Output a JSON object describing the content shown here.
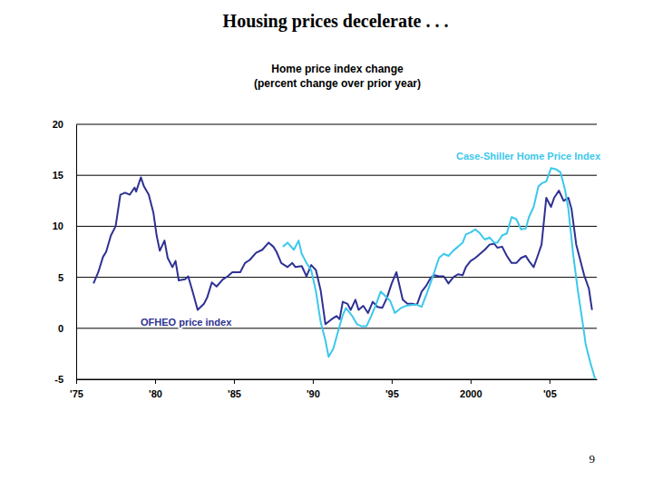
{
  "chart_data": {
    "type": "line",
    "title": "Housing prices decelerate . . .",
    "subtitle": [
      "Home price index change",
      "(percent change over prior year)"
    ],
    "annotations": [
      "9"
    ],
    "xlim": [
      1975,
      2008
    ],
    "xticks": [
      {
        "value": 1975,
        "label": "'75"
      },
      {
        "value": 1980,
        "label": "'80"
      },
      {
        "value": 1985,
        "label": "'85"
      },
      {
        "value": 1990,
        "label": "'90"
      },
      {
        "value": 1995,
        "label": "'95"
      },
      {
        "value": 2000,
        "label": "2000"
      },
      {
        "value": 2005,
        "label": "'05"
      }
    ],
    "ylim": [
      -5,
      20
    ],
    "yticks": [
      -5,
      0,
      5,
      10,
      15,
      20
    ],
    "grid": true,
    "series": [
      {
        "name": "OFHEO price index",
        "color": "#2e3192",
        "x": [
          1976.1,
          1976.4,
          1976.7,
          1976.9,
          1977.2,
          1977.5,
          1977.8,
          1978.1,
          1978.4,
          1978.7,
          1978.8,
          1979.1,
          1979.3,
          1979.6,
          1979.9,
          1980.1,
          1980.3,
          1980.6,
          1980.8,
          1981.1,
          1981.3,
          1981.5,
          1981.9,
          1982.1,
          1982.4,
          1982.7,
          1983.1,
          1983.3,
          1983.6,
          1983.9,
          1984.3,
          1984.6,
          1984.9,
          1985.4,
          1985.7,
          1986.0,
          1986.4,
          1986.8,
          1987.2,
          1987.5,
          1987.7,
          1988.0,
          1988.4,
          1988.7,
          1988.9,
          1989.3,
          1989.6,
          1989.9,
          1990.2,
          1990.5,
          1990.8,
          1991.2,
          1991.5,
          1991.7,
          1991.9,
          1992.2,
          1992.4,
          1992.7,
          1992.9,
          1993.2,
          1993.5,
          1993.8,
          1994.1,
          1994.4,
          1994.7,
          1995.0,
          1995.3,
          1995.7,
          1996.0,
          1996.3,
          1996.6,
          1996.9,
          1997.2,
          1997.5,
          1997.7,
          1998.0,
          1998.3,
          1998.6,
          1998.9,
          1999.2,
          1999.5,
          1999.7,
          2000.0,
          2000.3,
          2000.6,
          2000.9,
          2001.2,
          2001.5,
          2001.7,
          2002.0,
          2002.3,
          2002.6,
          2002.9,
          2003.2,
          2003.5,
          2003.7,
          2004.0,
          2004.3,
          2004.5,
          2004.8,
          2005.1,
          2005.3,
          2005.6,
          2005.9,
          2006.2,
          2006.4,
          2006.7,
          2007.0,
          2007.2,
          2007.5,
          2007.7
        ],
        "values": [
          4.4,
          5.5,
          7.0,
          7.5,
          9.1,
          10.0,
          13.1,
          13.3,
          13.1,
          13.8,
          13.4,
          14.8,
          13.9,
          13.1,
          11.3,
          9.1,
          7.6,
          8.6,
          6.9,
          6.0,
          6.6,
          4.7,
          4.8,
          5.1,
          3.5,
          1.8,
          2.4,
          3.0,
          4.5,
          4.1,
          4.8,
          5.1,
          5.5,
          5.5,
          6.4,
          6.7,
          7.4,
          7.7,
          8.4,
          8.0,
          7.5,
          6.4,
          6.0,
          6.4,
          6.0,
          6.1,
          5.1,
          6.2,
          5.7,
          3.7,
          0.4,
          0.9,
          1.2,
          0.9,
          2.6,
          2.4,
          1.8,
          2.8,
          1.8,
          2.2,
          1.5,
          2.6,
          2.1,
          2.0,
          3.0,
          4.4,
          5.5,
          2.8,
          2.4,
          2.4,
          2.3,
          3.6,
          4.2,
          5.0,
          5.2,
          5.1,
          5.1,
          4.4,
          5.0,
          5.3,
          5.2,
          6.0,
          6.6,
          6.9,
          7.3,
          7.7,
          8.2,
          8.3,
          7.9,
          8.0,
          7.1,
          6.4,
          6.4,
          6.9,
          7.1,
          6.6,
          6.0,
          7.3,
          8.2,
          12.8,
          11.9,
          12.8,
          13.5,
          12.5,
          12.8,
          11.7,
          8.2,
          6.4,
          5.2,
          3.9,
          1.8
        ]
      },
      {
        "name": "Case-Shiller Home Price Index",
        "color": "#3cc8ec",
        "x": [
          1988.1,
          1988.4,
          1988.8,
          1989.1,
          1989.3,
          1989.6,
          1989.9,
          1990.2,
          1990.5,
          1990.8,
          1991.0,
          1991.3,
          1991.6,
          1991.9,
          1992.1,
          1992.5,
          1992.8,
          1993.1,
          1993.4,
          1993.7,
          1994.0,
          1994.3,
          1994.7,
          1994.9,
          1995.2,
          1995.6,
          1995.9,
          1996.3,
          1996.6,
          1996.9,
          1997.2,
          1997.5,
          1997.7,
          1998.0,
          1998.3,
          1998.6,
          1998.9,
          1999.2,
          1999.5,
          1999.7,
          2000.0,
          2000.3,
          2000.6,
          2000.9,
          2001.2,
          2001.5,
          2001.7,
          2002.0,
          2002.3,
          2002.6,
          2002.9,
          2003.2,
          2003.5,
          2003.7,
          2004.0,
          2004.3,
          2004.5,
          2004.8,
          2005.1,
          2005.4,
          2005.7,
          2006.0,
          2006.2,
          2006.5,
          2006.8,
          2007.1,
          2007.3,
          2007.6,
          2007.9
        ],
        "values": [
          8.0,
          8.4,
          7.7,
          8.6,
          7.3,
          6.4,
          5.7,
          3.6,
          0.6,
          -1.2,
          -2.8,
          -2.0,
          -0.3,
          1.3,
          2.0,
          1.2,
          0.4,
          0.2,
          0.2,
          1.2,
          2.3,
          3.6,
          3.0,
          2.7,
          1.5,
          2.0,
          2.2,
          2.3,
          2.3,
          2.1,
          3.3,
          4.6,
          5.5,
          6.9,
          7.3,
          7.1,
          7.6,
          8.0,
          8.4,
          9.2,
          9.4,
          9.7,
          9.3,
          8.7,
          8.9,
          8.4,
          8.4,
          9.1,
          9.3,
          10.9,
          10.7,
          9.7,
          9.8,
          10.9,
          11.9,
          13.9,
          14.2,
          14.4,
          15.7,
          15.6,
          15.3,
          13.5,
          11.7,
          7.3,
          3.7,
          0.6,
          -1.6,
          -3.4,
          -5.0
        ]
      }
    ]
  }
}
